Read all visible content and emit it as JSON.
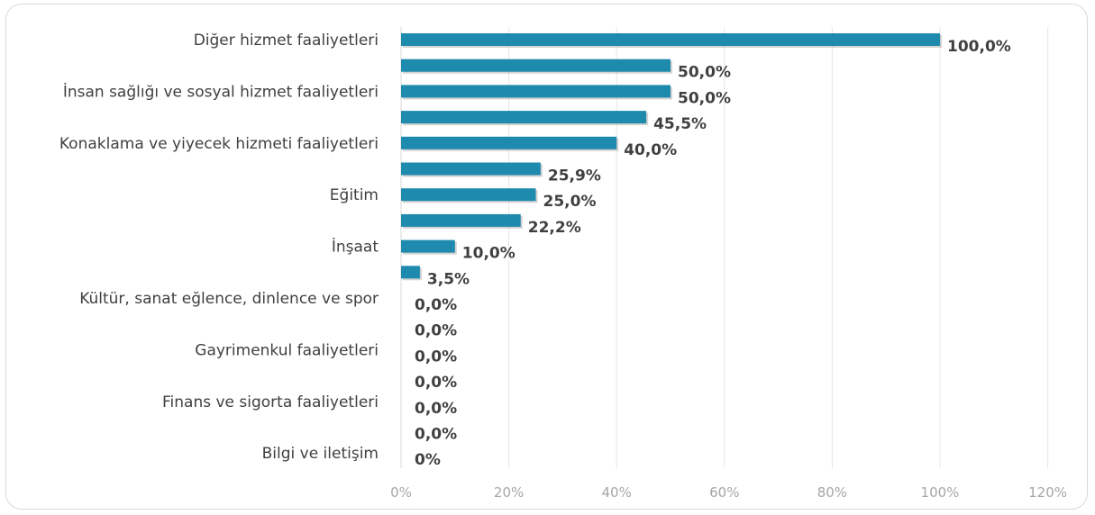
{
  "chart_data": {
    "type": "bar",
    "orientation": "horizontal",
    "color": "#1e8aad",
    "xlim": [
      0,
      120
    ],
    "x_ticks": [
      "0%",
      "20%",
      "40%",
      "60%",
      "80%",
      "100%",
      "120%"
    ],
    "x_tick_values": [
      0,
      20,
      40,
      60,
      80,
      100,
      120
    ],
    "grid": true,
    "bars": [
      {
        "label": "Diğer hizmet faaliyetleri",
        "value": 100.0,
        "display": "100,0%"
      },
      {
        "label": "",
        "value": 50.0,
        "display": "50,0%"
      },
      {
        "label": "İnsan sağlığı ve sosyal hizmet faaliyetleri",
        "value": 50.0,
        "display": "50,0%"
      },
      {
        "label": "",
        "value": 45.5,
        "display": "45,5%"
      },
      {
        "label": "Konaklama ve yiyecek hizmeti faaliyetleri",
        "value": 40.0,
        "display": "40,0%"
      },
      {
        "label": "",
        "value": 25.9,
        "display": "25,9%"
      },
      {
        "label": "Eğitim",
        "value": 25.0,
        "display": "25,0%"
      },
      {
        "label": "",
        "value": 22.2,
        "display": "22,2%"
      },
      {
        "label": "İnşaat",
        "value": 10.0,
        "display": "10,0%"
      },
      {
        "label": "",
        "value": 3.5,
        "display": "3,5%"
      },
      {
        "label": "Kültür, sanat eğlence, dinlence ve spor",
        "value": 0.0,
        "display": "0,0%"
      },
      {
        "label": "",
        "value": 0.0,
        "display": "0,0%"
      },
      {
        "label": "Gayrimenkul faaliyetleri",
        "value": 0.0,
        "display": "0,0%"
      },
      {
        "label": "",
        "value": 0.0,
        "display": "0,0%"
      },
      {
        "label": "Finans ve sigorta faaliyetleri",
        "value": 0.0,
        "display": "0,0%"
      },
      {
        "label": "",
        "value": 0.0,
        "display": "0,0%"
      },
      {
        "label": "Bilgi ve iletişim",
        "value": 0.0,
        "display": "0%"
      }
    ]
  }
}
